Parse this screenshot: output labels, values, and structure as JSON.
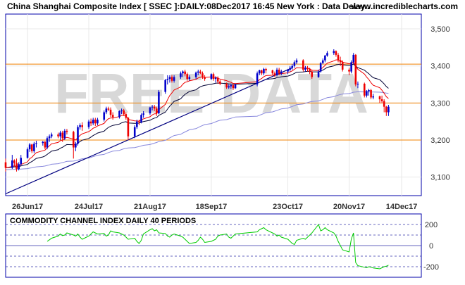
{
  "header": {
    "title": "China Shanghai Composite Index [ SSEC ]:DAILY:08Dec2017 16:45 New York : Data Delay..",
    "site": "www.incrediblecharts.com"
  },
  "watermark": "FREE DATA",
  "colors": {
    "background": "#ffffff",
    "panel_border": "#0000aa",
    "up_candle": "#0000cc",
    "down_candle": "#ee0000",
    "ma_short": "#ee0000",
    "ma_mid": "#000033",
    "ma_long": "#8888dd",
    "trendline": "#000080",
    "support_line": "#f08000",
    "cci_line": "#00cc00",
    "dashed_level": "#3333aa",
    "watermark": "#d8d8d8"
  },
  "chart_data": [
    {
      "type": "candlestick",
      "title": "China Shanghai Composite Index [ SSEC ]:DAILY:08Dec2017 16:45 New York : Data Delay..",
      "x_tick_labels": [
        "26Jun17",
        "24Jul17",
        "21Aug17",
        "18Sep17",
        "23Oct17",
        "20Nov17",
        "14Dec17"
      ],
      "x_tick_dates": [
        "2017-06-26",
        "2017-07-24",
        "2017-08-21",
        "2017-09-18",
        "2017-10-23",
        "2017-11-20",
        "2017-12-14"
      ],
      "y_ticks": [
        3100,
        3200,
        3300,
        3400,
        3500
      ],
      "y_tick_labels": [
        "3,100",
        "3,200",
        "3,300",
        "3,400",
        "3,500"
      ],
      "ylim": [
        3050,
        3540
      ],
      "xlim": [
        "2017-06-16",
        "2017-12-23"
      ],
      "grid": true,
      "horizontal_lines": [
        3405,
        3300,
        3200
      ],
      "trendline": {
        "from": [
          "2017-06-16",
          3055
        ],
        "to": [
          "2017-10-25",
          3395
        ]
      },
      "ohlc": [
        [
          "2017-06-16",
          3140,
          3150,
          3115,
          3125
        ],
        [
          "2017-06-19",
          3125,
          3160,
          3122,
          3145
        ],
        [
          "2017-06-20",
          3145,
          3148,
          3130,
          3138
        ],
        [
          "2017-06-21",
          3138,
          3150,
          3115,
          3122
        ],
        [
          "2017-06-22",
          3122,
          3140,
          3118,
          3135
        ],
        [
          "2017-06-23",
          3135,
          3160,
          3130,
          3152
        ],
        [
          "2017-06-26",
          3152,
          3180,
          3150,
          3175
        ],
        [
          "2017-06-27",
          3175,
          3192,
          3168,
          3188
        ],
        [
          "2017-06-28",
          3188,
          3190,
          3165,
          3170
        ],
        [
          "2017-06-29",
          3170,
          3195,
          3165,
          3190
        ],
        [
          "2017-06-30",
          3190,
          3198,
          3180,
          3192
        ],
        [
          "2017-07-03",
          3192,
          3198,
          3185,
          3195
        ],
        [
          "2017-07-04",
          3195,
          3198,
          3175,
          3180
        ],
        [
          "2017-07-05",
          3180,
          3210,
          3175,
          3205
        ],
        [
          "2017-07-06",
          3205,
          3215,
          3195,
          3210
        ],
        [
          "2017-07-07",
          3210,
          3220,
          3205,
          3215
        ],
        [
          "2017-07-10",
          3215,
          3220,
          3205,
          3210
        ],
        [
          "2017-07-11",
          3210,
          3225,
          3200,
          3220
        ],
        [
          "2017-07-12",
          3220,
          3225,
          3195,
          3205
        ],
        [
          "2017-07-13",
          3205,
          3230,
          3200,
          3225
        ],
        [
          "2017-07-14",
          3225,
          3230,
          3215,
          3222
        ],
        [
          "2017-07-17",
          3222,
          3225,
          3150,
          3180
        ],
        [
          "2017-07-18",
          3180,
          3195,
          3170,
          3190
        ],
        [
          "2017-07-19",
          3190,
          3240,
          3185,
          3235
        ],
        [
          "2017-07-20",
          3235,
          3245,
          3228,
          3240
        ],
        [
          "2017-07-21",
          3240,
          3248,
          3225,
          3235
        ],
        [
          "2017-07-24",
          3235,
          3255,
          3230,
          3250
        ],
        [
          "2017-07-25",
          3250,
          3258,
          3238,
          3245
        ],
        [
          "2017-07-26",
          3245,
          3260,
          3240,
          3255
        ],
        [
          "2017-07-27",
          3255,
          3260,
          3238,
          3245
        ],
        [
          "2017-07-28",
          3245,
          3260,
          3240,
          3255
        ],
        [
          "2017-07-31",
          3255,
          3280,
          3250,
          3275
        ],
        [
          "2017-08-01",
          3275,
          3290,
          3270,
          3285
        ],
        [
          "2017-08-02",
          3285,
          3290,
          3278,
          3282
        ],
        [
          "2017-08-03",
          3282,
          3288,
          3262,
          3268
        ],
        [
          "2017-08-04",
          3268,
          3275,
          3255,
          3262
        ],
        [
          "2017-08-07",
          3262,
          3280,
          3258,
          3278
        ],
        [
          "2017-08-08",
          3278,
          3285,
          3270,
          3280
        ],
        [
          "2017-08-09",
          3280,
          3284,
          3265,
          3270
        ],
        [
          "2017-08-10",
          3270,
          3275,
          3255,
          3260
        ],
        [
          "2017-08-11",
          3260,
          3262,
          3200,
          3210
        ],
        [
          "2017-08-14",
          3210,
          3240,
          3205,
          3235
        ],
        [
          "2017-08-15",
          3235,
          3255,
          3230,
          3250
        ],
        [
          "2017-08-16",
          3250,
          3255,
          3240,
          3248
        ],
        [
          "2017-08-17",
          3248,
          3272,
          3245,
          3268
        ],
        [
          "2017-08-18",
          3268,
          3278,
          3260,
          3272
        ],
        [
          "2017-08-21",
          3272,
          3290,
          3268,
          3288
        ],
        [
          "2017-08-22",
          3288,
          3295,
          3280,
          3290
        ],
        [
          "2017-08-23",
          3290,
          3295,
          3278,
          3285
        ],
        [
          "2017-08-24",
          3285,
          3290,
          3265,
          3272
        ],
        [
          "2017-08-25",
          3272,
          3335,
          3270,
          3330
        ],
        [
          "2017-08-28",
          3330,
          3365,
          3325,
          3362
        ],
        [
          "2017-08-29",
          3362,
          3375,
          3350,
          3365
        ],
        [
          "2017-08-30",
          3365,
          3375,
          3355,
          3370
        ],
        [
          "2017-08-31",
          3370,
          3375,
          3355,
          3360
        ],
        [
          "2017-09-01",
          3360,
          3375,
          3355,
          3370
        ],
        [
          "2017-09-04",
          3370,
          3385,
          3365,
          3380
        ],
        [
          "2017-09-05",
          3380,
          3388,
          3370,
          3385
        ],
        [
          "2017-09-06",
          3385,
          3390,
          3372,
          3378
        ],
        [
          "2017-09-07",
          3378,
          3382,
          3360,
          3365
        ],
        [
          "2017-09-08",
          3365,
          3375,
          3360,
          3370
        ],
        [
          "2017-09-11",
          3370,
          3385,
          3365,
          3382
        ],
        [
          "2017-09-12",
          3382,
          3390,
          3375,
          3385
        ],
        [
          "2017-09-13",
          3385,
          3390,
          3378,
          3380
        ],
        [
          "2017-09-14",
          3380,
          3385,
          3365,
          3370
        ],
        [
          "2017-09-15",
          3370,
          3375,
          3360,
          3365
        ],
        [
          "2017-09-18",
          3365,
          3380,
          3362,
          3378
        ],
        [
          "2017-09-19",
          3378,
          3382,
          3360,
          3365
        ],
        [
          "2017-09-20",
          3365,
          3372,
          3355,
          3368
        ],
        [
          "2017-09-21",
          3368,
          3372,
          3352,
          3358
        ],
        [
          "2017-09-22",
          3358,
          3362,
          3348,
          3352
        ],
        [
          "2017-09-25",
          3352,
          3355,
          3338,
          3342
        ],
        [
          "2017-09-26",
          3342,
          3350,
          3338,
          3345
        ],
        [
          "2017-09-27",
          3345,
          3352,
          3338,
          3348
        ],
        [
          "2017-09-28",
          3348,
          3350,
          3335,
          3340
        ],
        [
          "2017-09-29",
          3340,
          3352,
          3338,
          3350
        ],
        [
          "2017-10-09",
          3350,
          3385,
          3345,
          3380
        ],
        [
          "2017-10-10",
          3380,
          3390,
          3375,
          3388
        ],
        [
          "2017-10-11",
          3388,
          3390,
          3375,
          3380
        ],
        [
          "2017-10-12",
          3380,
          3395,
          3375,
          3392
        ],
        [
          "2017-10-13",
          3392,
          3395,
          3380,
          3388
        ],
        [
          "2017-10-16",
          3388,
          3390,
          3375,
          3380
        ],
        [
          "2017-10-17",
          3380,
          3385,
          3370,
          3375
        ],
        [
          "2017-10-18",
          3375,
          3395,
          3372,
          3390
        ],
        [
          "2017-10-19",
          3390,
          3395,
          3375,
          3380
        ],
        [
          "2017-10-20",
          3380,
          3390,
          3375,
          3385
        ],
        [
          "2017-10-23",
          3385,
          3392,
          3378,
          3390
        ],
        [
          "2017-10-24",
          3390,
          3400,
          3385,
          3395
        ],
        [
          "2017-10-25",
          3395,
          3405,
          3390,
          3400
        ],
        [
          "2017-10-26",
          3400,
          3415,
          3395,
          3410
        ],
        [
          "2017-10-27",
          3410,
          3420,
          3405,
          3415
        ],
        [
          "2017-10-30",
          3415,
          3418,
          3385,
          3390
        ],
        [
          "2017-10-31",
          3390,
          3400,
          3385,
          3395
        ],
        [
          "2017-11-01",
          3395,
          3400,
          3385,
          3392
        ],
        [
          "2017-11-02",
          3392,
          3395,
          3378,
          3385
        ],
        [
          "2017-11-03",
          3385,
          3390,
          3365,
          3370
        ],
        [
          "2017-11-06",
          3370,
          3390,
          3368,
          3385
        ],
        [
          "2017-11-07",
          3385,
          3410,
          3382,
          3408
        ],
        [
          "2017-11-08",
          3408,
          3420,
          3405,
          3415
        ],
        [
          "2017-11-09",
          3415,
          3430,
          3410,
          3428
        ],
        [
          "2017-11-10",
          3428,
          3440,
          3425,
          3435
        ],
        [
          "2017-11-13",
          3435,
          3445,
          3430,
          3440
        ],
        [
          "2017-11-14",
          3440,
          3442,
          3425,
          3430
        ],
        [
          "2017-11-15",
          3430,
          3435,
          3410,
          3415
        ],
        [
          "2017-11-16",
          3415,
          3425,
          3400,
          3410
        ],
        [
          "2017-11-17",
          3410,
          3415,
          3385,
          3390
        ],
        [
          "2017-11-20",
          3390,
          3395,
          3375,
          3385
        ],
        [
          "2017-11-21",
          3385,
          3415,
          3380,
          3410
        ],
        [
          "2017-11-22",
          3410,
          3435,
          3405,
          3430
        ],
        [
          "2017-11-23",
          3430,
          3432,
          3345,
          3350
        ],
        [
          "2017-11-24",
          3350,
          3358,
          3340,
          3352
        ],
        [
          "2017-11-27",
          3352,
          3355,
          3315,
          3320
        ],
        [
          "2017-11-28",
          3320,
          3335,
          3315,
          3332
        ],
        [
          "2017-11-29",
          3332,
          3338,
          3320,
          3335
        ],
        [
          "2017-11-30",
          3335,
          3338,
          3310,
          3315
        ],
        [
          "2017-12-01",
          3315,
          3325,
          3310,
          3318
        ],
        [
          "2017-12-04",
          3318,
          3320,
          3300,
          3310
        ],
        [
          "2017-12-05",
          3310,
          3320,
          3300,
          3305
        ],
        [
          "2017-12-06",
          3305,
          3310,
          3275,
          3290
        ],
        [
          "2017-12-07",
          3290,
          3292,
          3265,
          3275
        ],
        [
          "2017-12-08",
          3275,
          3295,
          3265,
          3290
        ]
      ],
      "moving_averages": [
        "short",
        "mid",
        "long"
      ]
    },
    {
      "type": "line",
      "title": "COMMODITY CHANNEL INDEX DAILY 40 PERIODS",
      "y_ticks": [
        200,
        0,
        -200
      ],
      "y_tick_labels": [
        "200",
        "0",
        "-200"
      ],
      "ylim": [
        -300,
        300
      ],
      "dashed_levels": [
        200,
        100,
        -100,
        -200
      ],
      "zero_line": 0,
      "series": [
        {
          "values": [
            40,
            55,
            70,
            90,
            110,
            95,
            100,
            120,
            100,
            90,
            110,
            80,
            60,
            90,
            110,
            130,
            120,
            110,
            115,
            90,
            100,
            140,
            130,
            120,
            110,
            100,
            80,
            60,
            70,
            40,
            20,
            50,
            110,
            150,
            160,
            140,
            150,
            120,
            115,
            90,
            80,
            100,
            110,
            90,
            80,
            60,
            40,
            20,
            30,
            50,
            80,
            60,
            30,
            40,
            50,
            60,
            90,
            100,
            110,
            80,
            70,
            90,
            110,
            130,
            150,
            160,
            170,
            150,
            120,
            110,
            90,
            100,
            80,
            60,
            40,
            20,
            10,
            50,
            70,
            60,
            80,
            100,
            120,
            200,
            140,
            150,
            170,
            150,
            120,
            90,
            40,
            0,
            -40,
            -60,
            60,
            120,
            -160,
            -190,
            -205,
            -210,
            -200,
            -205,
            -212,
            -220,
            -210,
            -200,
            -195,
            -185
          ]
        }
      ]
    }
  ]
}
